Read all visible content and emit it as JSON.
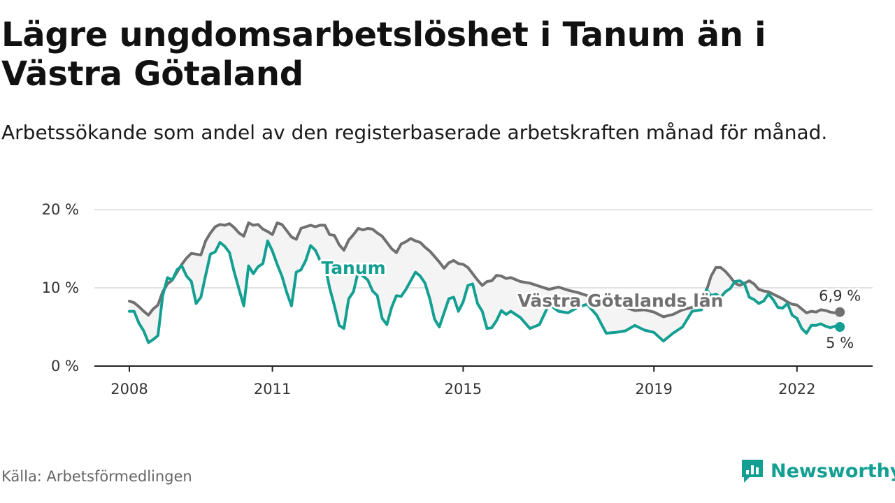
{
  "title": "Lägre ungdomsarbetslöshet i Tanum än i Västra Götaland",
  "subtitle": "Arbetssökande som andel av den registerbaserade arbetskraften månad för månad.",
  "source": "Källa: Arbetsförmedlingen",
  "brand": "Newsworthy",
  "colors": {
    "tanum": "#139f92",
    "vg": "#707070",
    "band": "#f4f4f4",
    "grid": "#d9d9d9",
    "axis": "#222222",
    "brand": "#139f92"
  },
  "chart_data": {
    "type": "line",
    "title": "Lägre ungdomsarbetslöshet i Tanum än i Västra Götaland",
    "xlabel": "",
    "ylabel": "",
    "ylim": [
      0,
      20
    ],
    "yticks": [
      0,
      10,
      20
    ],
    "ytick_labels": [
      "0 %",
      "10 %",
      "20 %"
    ],
    "xticks": [
      2008,
      2011,
      2015,
      2019,
      2022
    ],
    "xtick_labels": [
      "2008",
      "2011",
      "2015",
      "2019",
      "2022"
    ],
    "xlim": [
      2007.75,
      2024.3
    ],
    "grid": true,
    "series": [
      {
        "name": "Västra Götalands län",
        "end_label": "6,9 %",
        "x": [
          2008.0,
          2008.1,
          2008.2,
          2008.3,
          2008.4,
          2008.5,
          2008.6,
          2008.7,
          2008.8,
          2008.9,
          2009.0,
          2009.1,
          2009.2,
          2009.3,
          2009.4,
          2009.5,
          2009.6,
          2009.7,
          2009.8,
          2009.9,
          2010.0,
          2010.1,
          2010.2,
          2010.3,
          2010.4,
          2010.5,
          2010.6,
          2010.7,
          2010.8,
          2010.9,
          2011.0,
          2011.1,
          2011.2,
          2011.3,
          2011.4,
          2011.5,
          2011.6,
          2011.7,
          2011.8,
          2011.9,
          2012.0,
          2012.1,
          2012.2,
          2012.3,
          2012.4,
          2012.5,
          2012.6,
          2012.7,
          2012.8,
          2012.9,
          2013.0,
          2013.1,
          2013.2,
          2013.3,
          2013.4,
          2013.5,
          2013.6,
          2013.7,
          2013.8,
          2013.9,
          2014.0,
          2014.1,
          2014.2,
          2014.3,
          2014.4,
          2014.5,
          2014.6,
          2014.7,
          2014.8,
          2014.9,
          2015.0,
          2015.1,
          2015.2,
          2015.3,
          2015.4,
          2015.5,
          2015.6,
          2015.7,
          2015.8,
          2015.9,
          2016.0,
          2016.2,
          2016.4,
          2016.6,
          2016.8,
          2017.0,
          2017.2,
          2017.4,
          2017.6,
          2017.8,
          2018.0,
          2018.2,
          2018.4,
          2018.6,
          2018.8,
          2019.0,
          2019.2,
          2019.4,
          2019.6,
          2019.8,
          2020.0,
          2020.1,
          2020.2,
          2020.3,
          2020.4,
          2020.5,
          2020.6,
          2020.7,
          2020.8,
          2020.9,
          2021.0,
          2021.1,
          2021.2,
          2021.3,
          2021.4,
          2021.5,
          2021.6,
          2021.7,
          2021.8,
          2021.9,
          2022.0,
          2022.1,
          2022.2,
          2022.3,
          2022.4,
          2022.5,
          2022.6,
          2022.7,
          2022.8,
          2022.9
        ],
        "values": [
          8.3,
          8.1,
          7.6,
          7.0,
          6.5,
          7.3,
          7.8,
          9.5,
          10.5,
          11.0,
          12.0,
          13.0,
          13.8,
          14.4,
          14.3,
          14.2,
          16.0,
          17.0,
          17.8,
          18.1,
          18.0,
          18.2,
          17.7,
          17.0,
          16.6,
          18.3,
          18.0,
          18.1,
          17.5,
          17.2,
          16.8,
          18.3,
          18.1,
          17.3,
          16.5,
          16.2,
          17.6,
          17.8,
          18.0,
          17.8,
          18.0,
          18.0,
          16.8,
          16.7,
          15.5,
          14.8,
          16.1,
          16.8,
          17.6,
          17.4,
          17.6,
          17.5,
          17.0,
          16.6,
          15.8,
          15.0,
          14.5,
          15.6,
          15.9,
          16.3,
          16.0,
          15.8,
          15.2,
          14.7,
          14.0,
          13.3,
          12.5,
          13.2,
          13.5,
          13.1,
          13.0,
          12.6,
          11.8,
          11.0,
          10.3,
          10.8,
          10.9,
          11.6,
          11.5,
          11.2,
          11.3,
          10.8,
          10.6,
          10.2,
          9.8,
          10.1,
          9.7,
          9.4,
          9.0,
          8.4,
          8.7,
          8.1,
          7.5,
          7.1,
          7.2,
          6.9,
          6.3,
          6.6,
          7.2,
          7.5,
          8.5,
          9.6,
          11.5,
          12.6,
          12.6,
          12.1,
          11.4,
          10.6,
          10.3,
          10.6,
          10.9,
          10.5,
          9.8,
          9.6,
          9.5,
          9.2,
          8.9,
          8.6,
          8.2,
          7.9,
          7.8,
          7.3,
          6.8,
          7.0,
          6.9,
          7.2,
          7.1,
          6.9,
          6.8,
          6.9
        ]
      },
      {
        "name": "Tanum",
        "end_label": "5 %",
        "x": [
          2008.0,
          2008.1,
          2008.2,
          2008.3,
          2008.4,
          2008.5,
          2008.6,
          2008.7,
          2008.8,
          2008.9,
          2009.0,
          2009.1,
          2009.2,
          2009.3,
          2009.4,
          2009.5,
          2009.6,
          2009.7,
          2009.8,
          2009.9,
          2010.0,
          2010.1,
          2010.2,
          2010.3,
          2010.4,
          2010.5,
          2010.6,
          2010.7,
          2010.8,
          2010.9,
          2011.0,
          2011.1,
          2011.2,
          2011.3,
          2011.4,
          2011.5,
          2011.6,
          2011.7,
          2011.8,
          2011.9,
          2012.0,
          2012.1,
          2012.2,
          2012.3,
          2012.4,
          2012.5,
          2012.6,
          2012.7,
          2012.8,
          2012.9,
          2013.0,
          2013.1,
          2013.2,
          2013.3,
          2013.4,
          2013.5,
          2013.6,
          2013.7,
          2013.8,
          2013.9,
          2014.0,
          2014.1,
          2014.2,
          2014.3,
          2014.4,
          2014.5,
          2014.6,
          2014.7,
          2014.8,
          2014.9,
          2015.0,
          2015.1,
          2015.2,
          2015.3,
          2015.4,
          2015.5,
          2015.6,
          2015.7,
          2015.8,
          2015.9,
          2016.0,
          2016.2,
          2016.4,
          2016.6,
          2016.8,
          2017.0,
          2017.2,
          2017.4,
          2017.6,
          2017.8,
          2018.0,
          2018.2,
          2018.4,
          2018.6,
          2018.8,
          2019.0,
          2019.2,
          2019.4,
          2019.6,
          2019.8,
          2020.0,
          2020.1,
          2020.2,
          2020.3,
          2020.4,
          2020.5,
          2020.6,
          2020.7,
          2020.8,
          2020.9,
          2021.0,
          2021.1,
          2021.2,
          2021.3,
          2021.4,
          2021.5,
          2021.6,
          2021.7,
          2021.8,
          2021.9,
          2022.0,
          2022.1,
          2022.2,
          2022.3,
          2022.4,
          2022.5,
          2022.6,
          2022.7,
          2022.8,
          2022.9
        ],
        "values": [
          7.0,
          7.0,
          5.5,
          4.5,
          3.0,
          3.4,
          3.9,
          9.0,
          11.3,
          11.0,
          12.3,
          12.8,
          11.5,
          10.8,
          8.0,
          8.8,
          11.6,
          14.3,
          14.6,
          15.8,
          15.3,
          14.5,
          12.0,
          9.8,
          7.7,
          12.8,
          11.8,
          12.7,
          13.1,
          16.0,
          14.7,
          13.0,
          11.5,
          9.4,
          7.7,
          12.0,
          12.3,
          13.5,
          15.4,
          14.8,
          13.5,
          13.0,
          10.0,
          7.7,
          5.2,
          4.8,
          8.6,
          9.5,
          12.1,
          11.5,
          11.0,
          9.6,
          9.0,
          6.1,
          5.3,
          7.5,
          9.0,
          8.9,
          9.8,
          10.9,
          12.0,
          11.5,
          10.6,
          8.6,
          6.0,
          5.0,
          6.8,
          8.6,
          8.8,
          7.0,
          8.2,
          10.3,
          10.5,
          8.0,
          7.0,
          4.8,
          4.9,
          5.8,
          7.1,
          6.6,
          7.0,
          6.2,
          4.8,
          5.3,
          7.9,
          7.0,
          6.8,
          7.5,
          7.9,
          6.5,
          4.2,
          4.3,
          4.5,
          5.2,
          4.6,
          4.3,
          3.2,
          4.2,
          5.0,
          7.0,
          7.2,
          9.8,
          9.0,
          9.2,
          8.8,
          9.5,
          9.9,
          10.8,
          10.9,
          10.5,
          8.8,
          8.5,
          8.0,
          8.3,
          9.2,
          8.5,
          7.5,
          7.4,
          8.0,
          6.5,
          6.1,
          4.8,
          4.2,
          5.2,
          5.2,
          5.4,
          5.1,
          4.9,
          5.1,
          5.0
        ]
      }
    ],
    "annotations": [
      {
        "text": "Tanum",
        "series": "Tanum"
      },
      {
        "text": "Västra Götalands län",
        "series": "Västra Götalands län"
      }
    ]
  }
}
